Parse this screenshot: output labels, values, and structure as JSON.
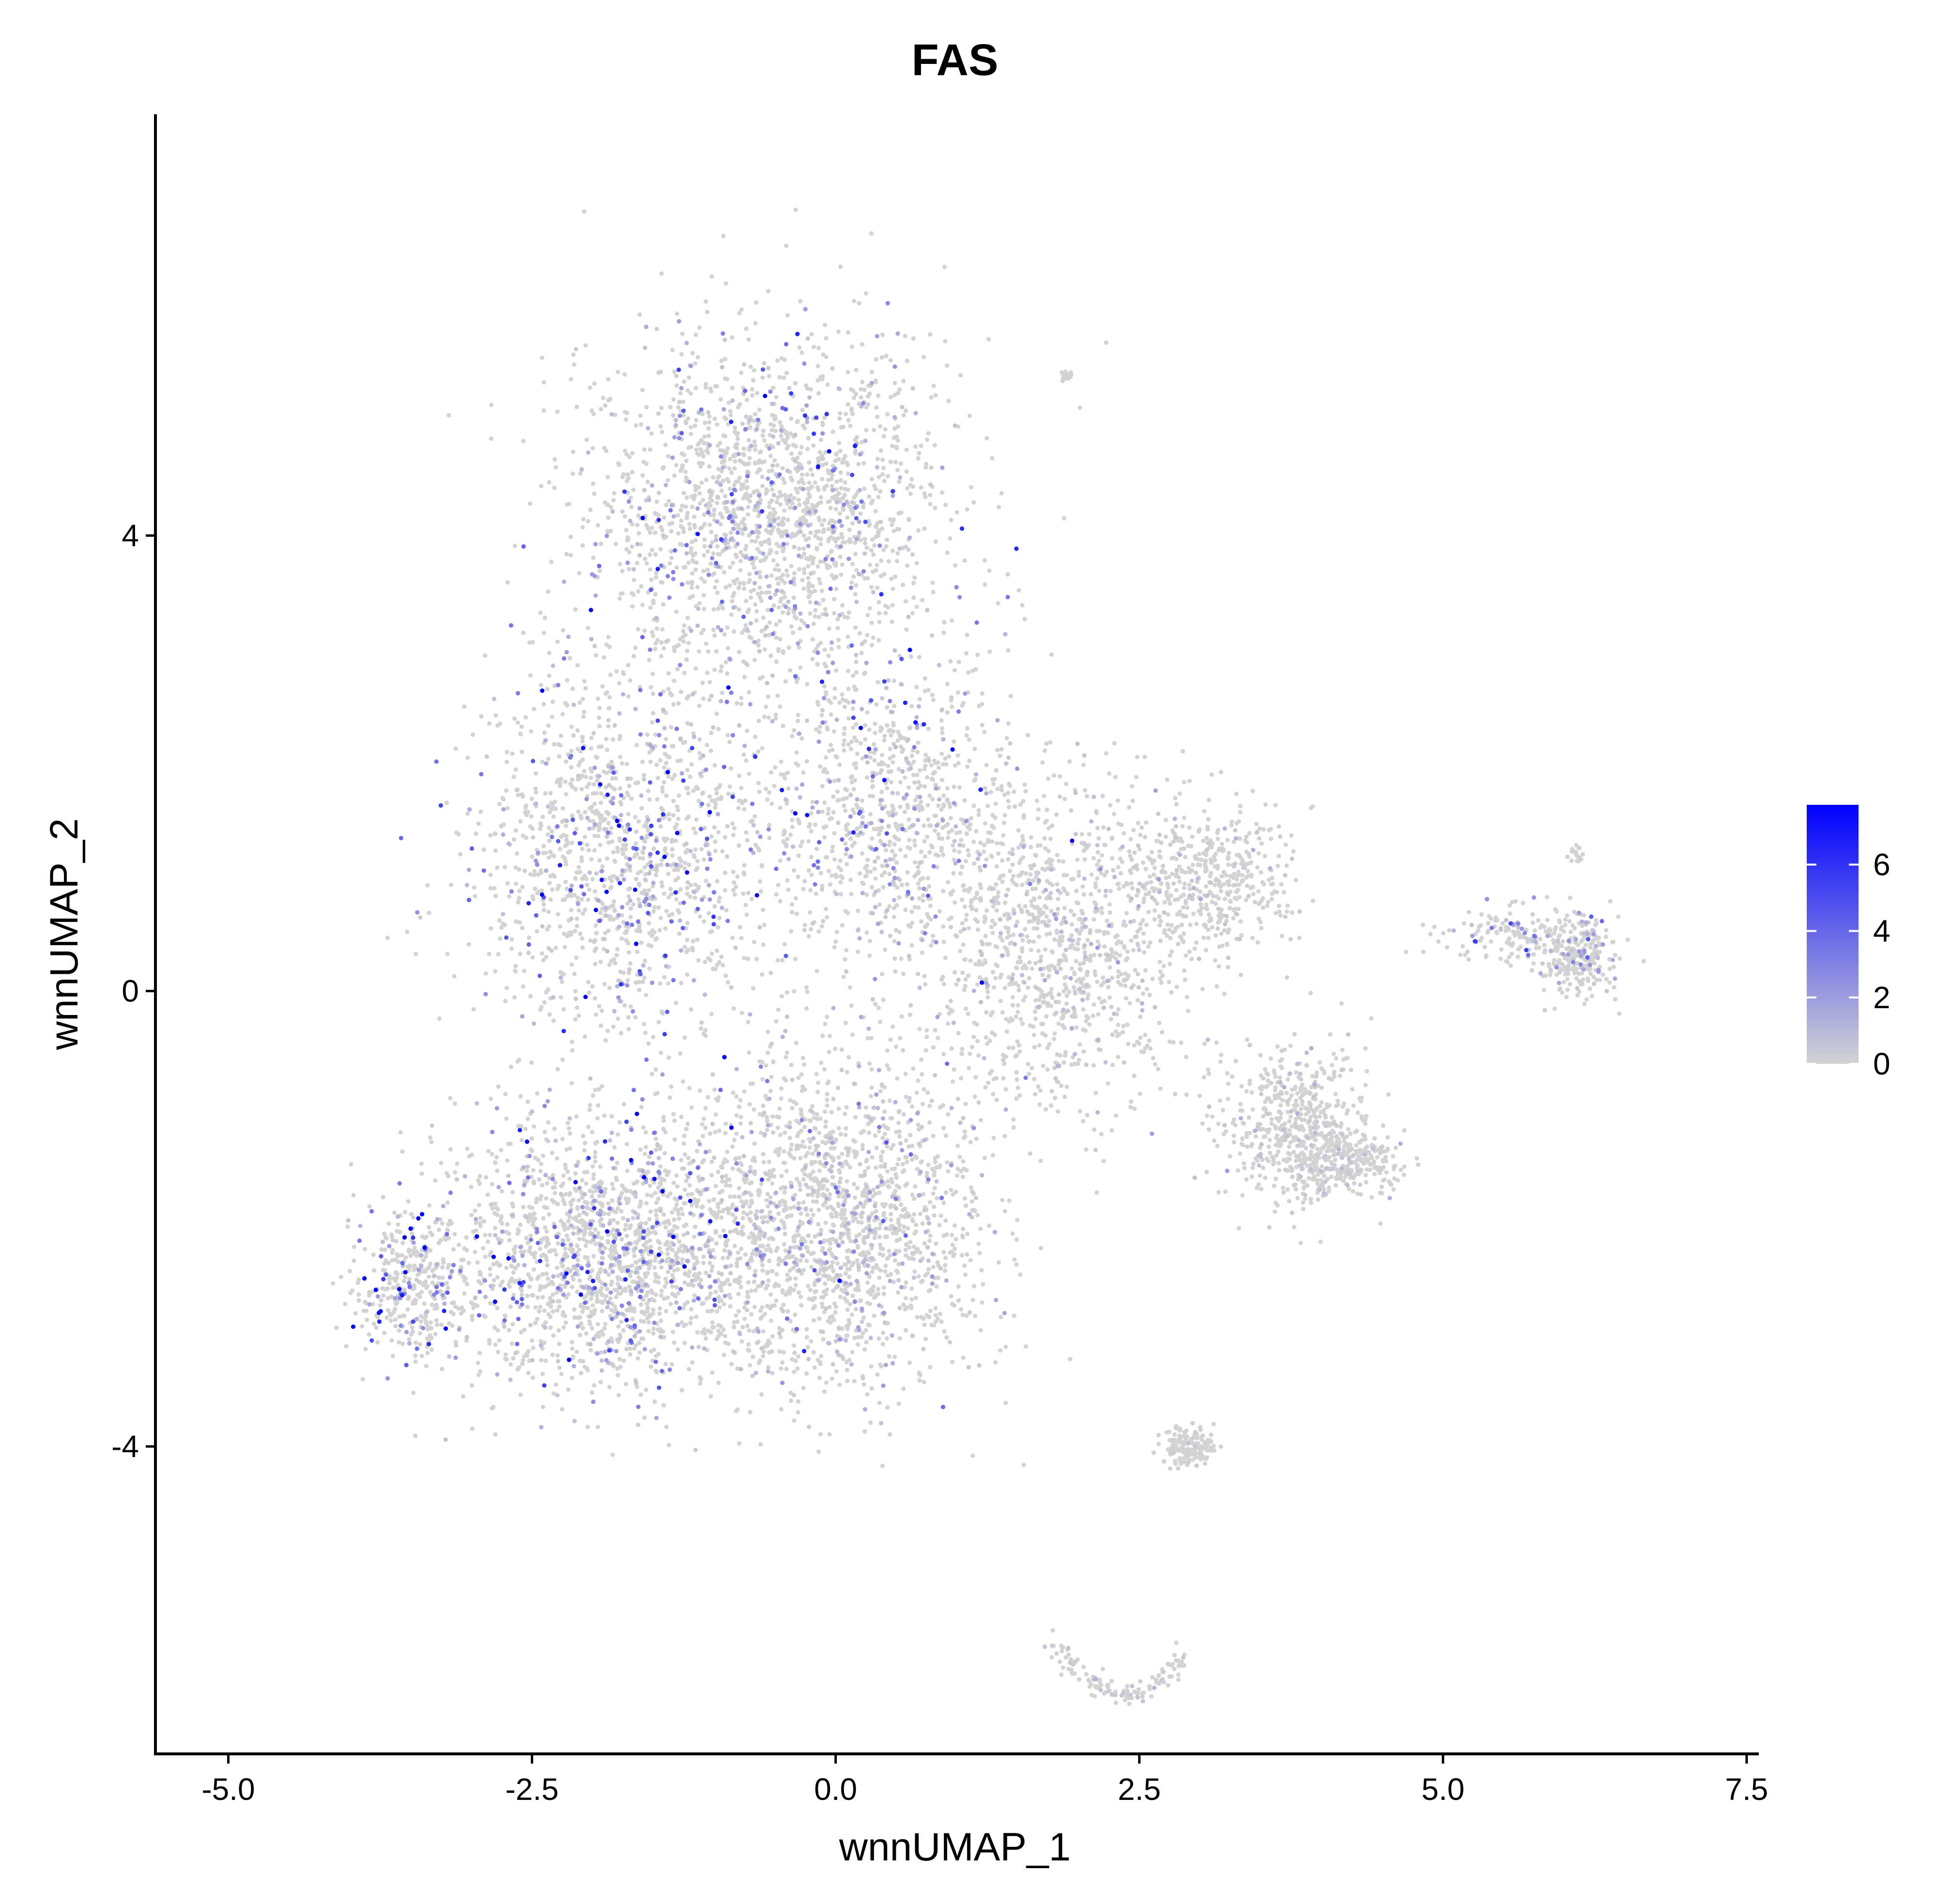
{
  "chart_data": {
    "type": "scatter",
    "title": "FAS",
    "xlabel": "wnnUMAP_1",
    "ylabel": "wnnUMAP_2",
    "xlim": [
      -5.6,
      7.6
    ],
    "ylim": [
      -6.7,
      7.7
    ],
    "x_ticks": [
      -5.0,
      -2.5,
      0.0,
      2.5,
      5.0,
      7.5
    ],
    "x_tick_labels": [
      "-5.0",
      "-2.5",
      "0.0",
      "2.5",
      "5.0",
      "7.5"
    ],
    "y_ticks": [
      -4,
      0,
      4
    ],
    "y_tick_labels": [
      "-4",
      "0",
      "4"
    ],
    "grid": false,
    "color_scale": {
      "min": 0,
      "max": 7.8,
      "low_color": "#d3d3d3",
      "high_color": "#0000ff",
      "ticks": [
        0,
        2,
        4,
        6
      ],
      "tick_labels": [
        "0",
        "2",
        "4",
        "6"
      ],
      "legend_position": "right"
    },
    "clusters": [
      {
        "center": [
          -0.6,
          4.2
        ],
        "spread": [
          1.35,
          1.35
        ],
        "count": 1900,
        "mean_expr": 0.5
      },
      {
        "center": [
          -1.8,
          1.2
        ],
        "spread": [
          1.1,
          1.4
        ],
        "count": 1300,
        "mean_expr": 0.8
      },
      {
        "center": [
          0.4,
          1.6
        ],
        "spread": [
          1.0,
          1.2
        ],
        "count": 900,
        "mean_expr": 0.6
      },
      {
        "center": [
          -1.9,
          -2.3
        ],
        "spread": [
          1.25,
          1.05
        ],
        "count": 1800,
        "mean_expr": 0.7
      },
      {
        "center": [
          0.0,
          -2.0
        ],
        "spread": [
          1.1,
          1.3
        ],
        "count": 1700,
        "mean_expr": 0.3
      },
      {
        "center": [
          -3.5,
          -2.6
        ],
        "spread": [
          0.45,
          0.55
        ],
        "count": 350,
        "mean_expr": 1.2
      },
      {
        "center": [
          1.8,
          0.4
        ],
        "spread": [
          1.0,
          1.3
        ],
        "count": 1100,
        "mean_expr": 0.15
      },
      {
        "center": [
          3.1,
          1.0
        ],
        "spread": [
          0.6,
          0.55
        ],
        "count": 450,
        "mean_expr": 0.1
      },
      {
        "center": [
          3.8,
          -1.2
        ],
        "spread": [
          0.55,
          0.6
        ],
        "count": 550,
        "mean_expr": 0.1
      },
      {
        "center": [
          4.2,
          -1.5
        ],
        "spread": [
          0.45,
          0.25
        ],
        "count": 250,
        "mean_expr": 0.1
      },
      {
        "center": [
          5.6,
          0.5
        ],
        "spread": [
          0.6,
          0.25
        ],
        "count": 160,
        "mean_expr": 0.6
      },
      {
        "center": [
          6.1,
          0.3
        ],
        "spread": [
          0.25,
          0.3
        ],
        "count": 260,
        "mean_expr": 0.3
      },
      {
        "center": [
          2.9,
          -4.0
        ],
        "spread": [
          0.2,
          0.15
        ],
        "count": 160,
        "mean_expr": 0.05
      },
      {
        "center": [
          1.9,
          5.4
        ],
        "spread": [
          0.05,
          0.04
        ],
        "count": 20,
        "mean_expr": 0.05
      },
      {
        "center": [
          6.1,
          1.2
        ],
        "spread": [
          0.05,
          0.06
        ],
        "count": 16,
        "mean_expr": 0.05
      }
    ],
    "arcs": [
      {
        "from": [
          1.8,
          -5.7
        ],
        "control": [
          2.4,
          -6.6
        ],
        "to": [
          2.9,
          -5.8
        ],
        "count": 130,
        "mean_expr": 0.1
      }
    ]
  }
}
